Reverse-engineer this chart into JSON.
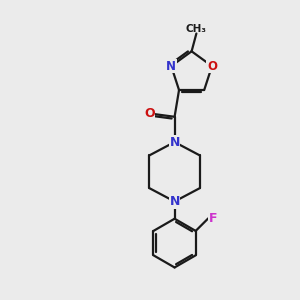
{
  "background_color": "#ebebeb",
  "bond_color": "#1a1a1a",
  "nitrogen_color": "#3333cc",
  "oxygen_color": "#cc1111",
  "fluorine_color": "#cc33cc",
  "line_width": 1.6,
  "dbo": 0.07,
  "figsize": [
    3.0,
    3.0
  ],
  "dpi": 100,
  "xlim": [
    0,
    10
  ],
  "ylim": [
    0,
    10
  ]
}
